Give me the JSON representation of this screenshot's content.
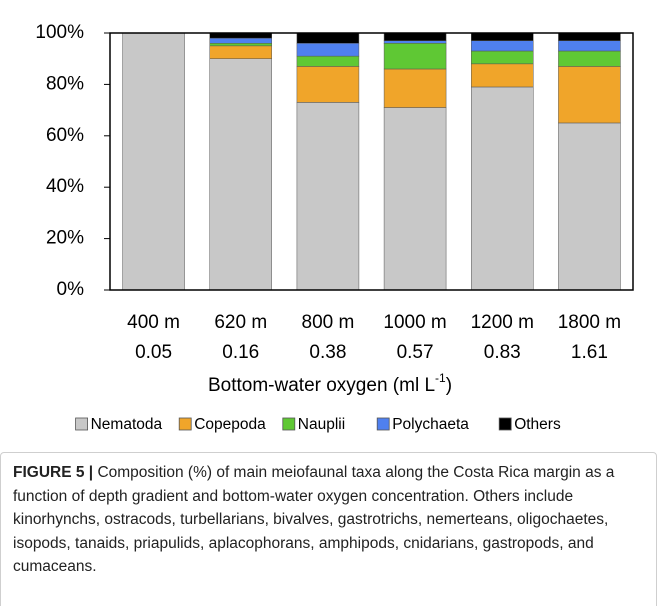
{
  "chart_data": {
    "type": "stacked_bar",
    "categories": [
      "400 m",
      "620 m",
      "800 m",
      "1000 m",
      "1200 m",
      "1800 m"
    ],
    "categories_line2": [
      "0.05",
      "0.16",
      "0.38",
      "0.57",
      "0.83",
      "1.61"
    ],
    "x_label": "Bottom-water oxygen (ml L",
    "x_label_sup": "-1",
    "x_label_end": ")",
    "series": [
      {
        "name": "Nematoda",
        "color": "#c8c8c8",
        "values": [
          100,
          90,
          73,
          71,
          79,
          65
        ]
      },
      {
        "name": "Copepoda",
        "color": "#f0a52a",
        "values": [
          0,
          5,
          14,
          15,
          9,
          22
        ]
      },
      {
        "name": "Nauplii",
        "color": "#5fc834",
        "values": [
          0,
          1,
          4,
          10,
          5,
          6
        ]
      },
      {
        "name": "Polychaeta",
        "color": "#4f80ef",
        "values": [
          0,
          2,
          5,
          1,
          4,
          4
        ]
      },
      {
        "name": "Others",
        "color": "#000000",
        "values": [
          0,
          2,
          4,
          3,
          3,
          3
        ]
      }
    ],
    "ylim": [
      0,
      100
    ],
    "yticks": [
      {
        "value": 0,
        "label": "0%"
      },
      {
        "value": 20,
        "label": "20%"
      },
      {
        "value": 40,
        "label": "40%"
      },
      {
        "value": 60,
        "label": "60%"
      },
      {
        "value": 80,
        "label": "80%"
      },
      {
        "value": 100,
        "label": "100%"
      }
    ],
    "legend": "bottom"
  },
  "caption": {
    "label": "FIGURE 5 |",
    "text": "Composition (%) of main meiofaunal taxa along the Costa Rica margin as a function of depth gradient and bottom-water oxygen concentration. Others include kinorhynchs, ostracods, turbellarians, bivalves, gastrotrichs, nemerteans, oligochaetes, isopods, tanaids, priapulids, aplacophorans, amphipods, cnidarians, gastropods, and cumaceans."
  }
}
